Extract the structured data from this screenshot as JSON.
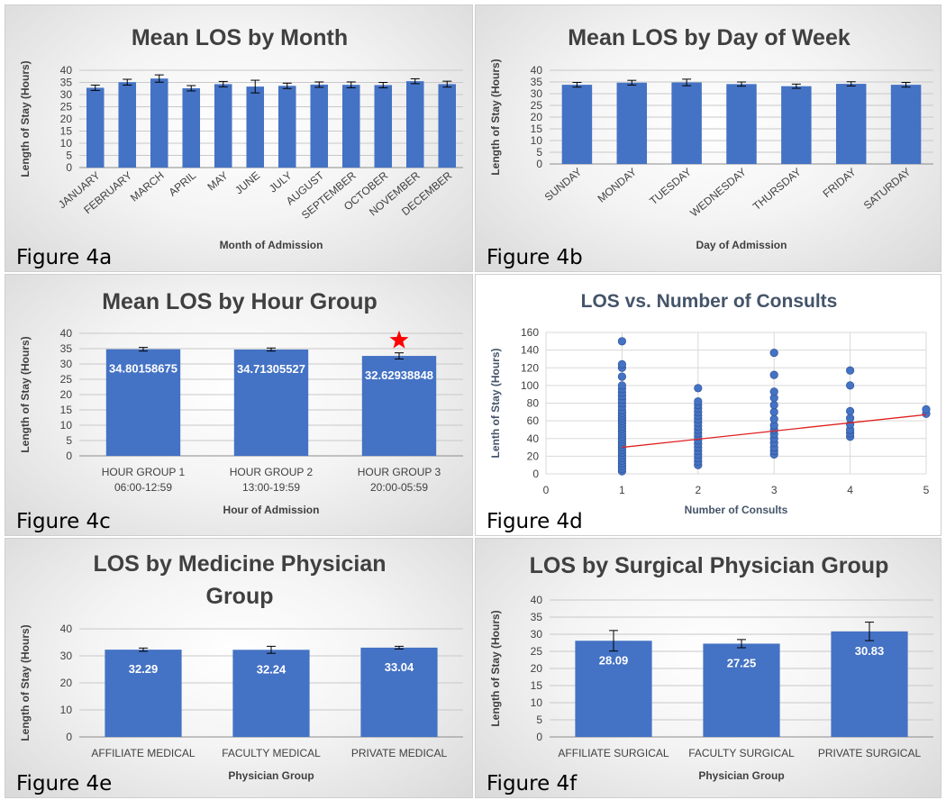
{
  "figures": [
    {
      "label": "Figure 4a"
    },
    {
      "label": "Figure 4b"
    },
    {
      "label": "Figure 4c"
    },
    {
      "label": "Figure 4d"
    },
    {
      "label": "Figure 4e"
    },
    {
      "label": "Figure 4f"
    }
  ],
  "colors": {
    "bar": "#4472c4",
    "point": "#4472c4",
    "trendline": "#e02020",
    "star": "#ff0000",
    "scatter_title": "#44546a"
  },
  "chart_data": [
    {
      "type": "bar",
      "title": "Mean LOS by Month",
      "xlabel": "Month of Admission",
      "ylabel": "Length of Stay (Hours)",
      "ylim": [
        0,
        40
      ],
      "yticks": [
        "0",
        "5",
        "10",
        "15",
        "20",
        "25",
        "30",
        "35",
        "40"
      ],
      "grid": true,
      "categories": [
        "JANUARY",
        "FEBRUARY",
        "MARCH",
        "APRIL",
        "MAY",
        "JUNE",
        "JULY",
        "AUGUST",
        "SEPTEMBER",
        "OCTOBER",
        "NOVEMBER",
        "DECEMBER"
      ],
      "values": [
        32.8,
        35.1,
        36.6,
        32.6,
        34.3,
        33.3,
        33.6,
        34.1,
        34.0,
        33.9,
        35.5,
        34.3
      ],
      "errors": [
        1.1,
        1.2,
        1.5,
        1.1,
        1.1,
        2.6,
        1.1,
        1.1,
        1.2,
        1.1,
        1.0,
        1.2
      ]
    },
    {
      "type": "bar",
      "title": "Mean LOS by Day of Week",
      "xlabel": "Day of Admission",
      "ylabel": "Length of Stay (Hours)",
      "ylim": [
        0,
        40
      ],
      "yticks": [
        "0",
        "5",
        "10",
        "15",
        "20",
        "25",
        "30",
        "35",
        "40"
      ],
      "grid": true,
      "categories": [
        "SUNDAY",
        "MONDAY",
        "TUESDAY",
        "WEDNESDAY",
        "THURSDAY",
        "FRIDAY",
        "SATURDAY"
      ],
      "values": [
        33.8,
        34.7,
        34.8,
        34.1,
        33.2,
        34.2,
        33.8
      ],
      "errors": [
        1.0,
        1.0,
        1.4,
        0.9,
        0.9,
        0.9,
        1.0
      ]
    },
    {
      "type": "bar",
      "title": "Mean LOS by Hour Group",
      "xlabel": "Hour of Admission",
      "ylabel": "Length of Stay (Hours)",
      "ylim": [
        0,
        40
      ],
      "yticks": [
        "0",
        "5",
        "10",
        "15",
        "20",
        "25",
        "30",
        "35",
        "40"
      ],
      "grid": true,
      "categories": [
        [
          "HOUR GROUP 1",
          "06:00-12:59"
        ],
        [
          "HOUR GROUP 2",
          "13:00-19:59"
        ],
        [
          "HOUR GROUP 3",
          "20:00-05:59"
        ]
      ],
      "values": [
        34.80158675,
        34.71305527,
        32.62938848
      ],
      "value_labels": [
        "34.80158675",
        "34.71305527",
        "32.62938848"
      ],
      "errors": [
        0.6,
        0.5,
        1.0
      ],
      "annotation": {
        "type": "star",
        "category_index": 2
      }
    },
    {
      "type": "scatter",
      "title": "LOS vs. Number of Consults",
      "xlabel": "Number of Consults",
      "ylabel": "Lenth of Stay (Hours)",
      "xlim": [
        0,
        5
      ],
      "ylim": [
        0,
        160
      ],
      "xticks": [
        "0",
        "1",
        "2",
        "3",
        "4",
        "5"
      ],
      "yticks": [
        "0",
        "20",
        "40",
        "60",
        "80",
        "100",
        "120",
        "140",
        "160"
      ],
      "grid": true,
      "trendline": {
        "x": [
          1,
          5
        ],
        "y": [
          30,
          67
        ]
      },
      "points": [
        {
          "x": 1,
          "y": 3
        },
        {
          "x": 1,
          "y": 6
        },
        {
          "x": 1,
          "y": 9
        },
        {
          "x": 1,
          "y": 12
        },
        {
          "x": 1,
          "y": 15
        },
        {
          "x": 1,
          "y": 18
        },
        {
          "x": 1,
          "y": 21
        },
        {
          "x": 1,
          "y": 24
        },
        {
          "x": 1,
          "y": 27
        },
        {
          "x": 1,
          "y": 30
        },
        {
          "x": 1,
          "y": 33
        },
        {
          "x": 1,
          "y": 36
        },
        {
          "x": 1,
          "y": 39
        },
        {
          "x": 1,
          "y": 42
        },
        {
          "x": 1,
          "y": 45
        },
        {
          "x": 1,
          "y": 48
        },
        {
          "x": 1,
          "y": 51
        },
        {
          "x": 1,
          "y": 54
        },
        {
          "x": 1,
          "y": 57
        },
        {
          "x": 1,
          "y": 60
        },
        {
          "x": 1,
          "y": 63
        },
        {
          "x": 1,
          "y": 66
        },
        {
          "x": 1,
          "y": 69
        },
        {
          "x": 1,
          "y": 72
        },
        {
          "x": 1,
          "y": 76
        },
        {
          "x": 1,
          "y": 80
        },
        {
          "x": 1,
          "y": 84
        },
        {
          "x": 1,
          "y": 88
        },
        {
          "x": 1,
          "y": 92
        },
        {
          "x": 1,
          "y": 96
        },
        {
          "x": 1,
          "y": 100
        },
        {
          "x": 1,
          "y": 110
        },
        {
          "x": 1,
          "y": 120
        },
        {
          "x": 1,
          "y": 124
        },
        {
          "x": 1,
          "y": 150
        },
        {
          "x": 2,
          "y": 10
        },
        {
          "x": 2,
          "y": 14
        },
        {
          "x": 2,
          "y": 18
        },
        {
          "x": 2,
          "y": 22
        },
        {
          "x": 2,
          "y": 26
        },
        {
          "x": 2,
          "y": 30
        },
        {
          "x": 2,
          "y": 34
        },
        {
          "x": 2,
          "y": 38
        },
        {
          "x": 2,
          "y": 42
        },
        {
          "x": 2,
          "y": 46
        },
        {
          "x": 2,
          "y": 50
        },
        {
          "x": 2,
          "y": 54
        },
        {
          "x": 2,
          "y": 58
        },
        {
          "x": 2,
          "y": 62
        },
        {
          "x": 2,
          "y": 66
        },
        {
          "x": 2,
          "y": 70
        },
        {
          "x": 2,
          "y": 74
        },
        {
          "x": 2,
          "y": 78
        },
        {
          "x": 2,
          "y": 82
        },
        {
          "x": 2,
          "y": 97
        },
        {
          "x": 3,
          "y": 22
        },
        {
          "x": 3,
          "y": 26
        },
        {
          "x": 3,
          "y": 30
        },
        {
          "x": 3,
          "y": 35
        },
        {
          "x": 3,
          "y": 40
        },
        {
          "x": 3,
          "y": 45
        },
        {
          "x": 3,
          "y": 50
        },
        {
          "x": 3,
          "y": 55
        },
        {
          "x": 3,
          "y": 62
        },
        {
          "x": 3,
          "y": 70
        },
        {
          "x": 3,
          "y": 78
        },
        {
          "x": 3,
          "y": 86
        },
        {
          "x": 3,
          "y": 93
        },
        {
          "x": 3,
          "y": 112
        },
        {
          "x": 3,
          "y": 137
        },
        {
          "x": 4,
          "y": 42
        },
        {
          "x": 4,
          "y": 46
        },
        {
          "x": 4,
          "y": 50
        },
        {
          "x": 4,
          "y": 56
        },
        {
          "x": 4,
          "y": 63
        },
        {
          "x": 4,
          "y": 71
        },
        {
          "x": 4,
          "y": 100
        },
        {
          "x": 4,
          "y": 117
        },
        {
          "x": 5,
          "y": 68
        },
        {
          "x": 5,
          "y": 73
        }
      ]
    },
    {
      "type": "bar",
      "title": "LOS by Medicine Physician Group",
      "title_lines": [
        "LOS by Medicine Physician",
        "Group"
      ],
      "xlabel": "Physician Group",
      "ylabel": "Length of Stay (Hours)",
      "ylim": [
        0,
        40
      ],
      "yticks": [
        "0",
        "10",
        "20",
        "30",
        "40"
      ],
      "grid": true,
      "categories": [
        "AFFILIATE MEDICAL",
        "FACULTY MEDICAL",
        "PRIVATE MEDICAL"
      ],
      "values": [
        32.29,
        32.24,
        33.04
      ],
      "value_labels": [
        "32.29",
        "32.24",
        "33.04"
      ],
      "errors": [
        0.6,
        1.3,
        0.5
      ]
    },
    {
      "type": "bar",
      "title": "LOS by Surgical Physician Group",
      "xlabel": "Physician Group",
      "ylabel": "Length of Stay (Hours)",
      "ylim": [
        0,
        40
      ],
      "yticks": [
        "0",
        "5",
        "10",
        "15",
        "20",
        "25",
        "30",
        "35",
        "40"
      ],
      "grid": true,
      "categories": [
        "AFFILIATE SURGICAL",
        "FACULTY SURGICAL",
        "PRIVATE SURGICAL"
      ],
      "values": [
        28.09,
        27.25,
        30.83
      ],
      "value_labels": [
        "28.09",
        "27.25",
        "30.83"
      ],
      "errors": [
        3.0,
        1.2,
        2.7
      ]
    }
  ]
}
